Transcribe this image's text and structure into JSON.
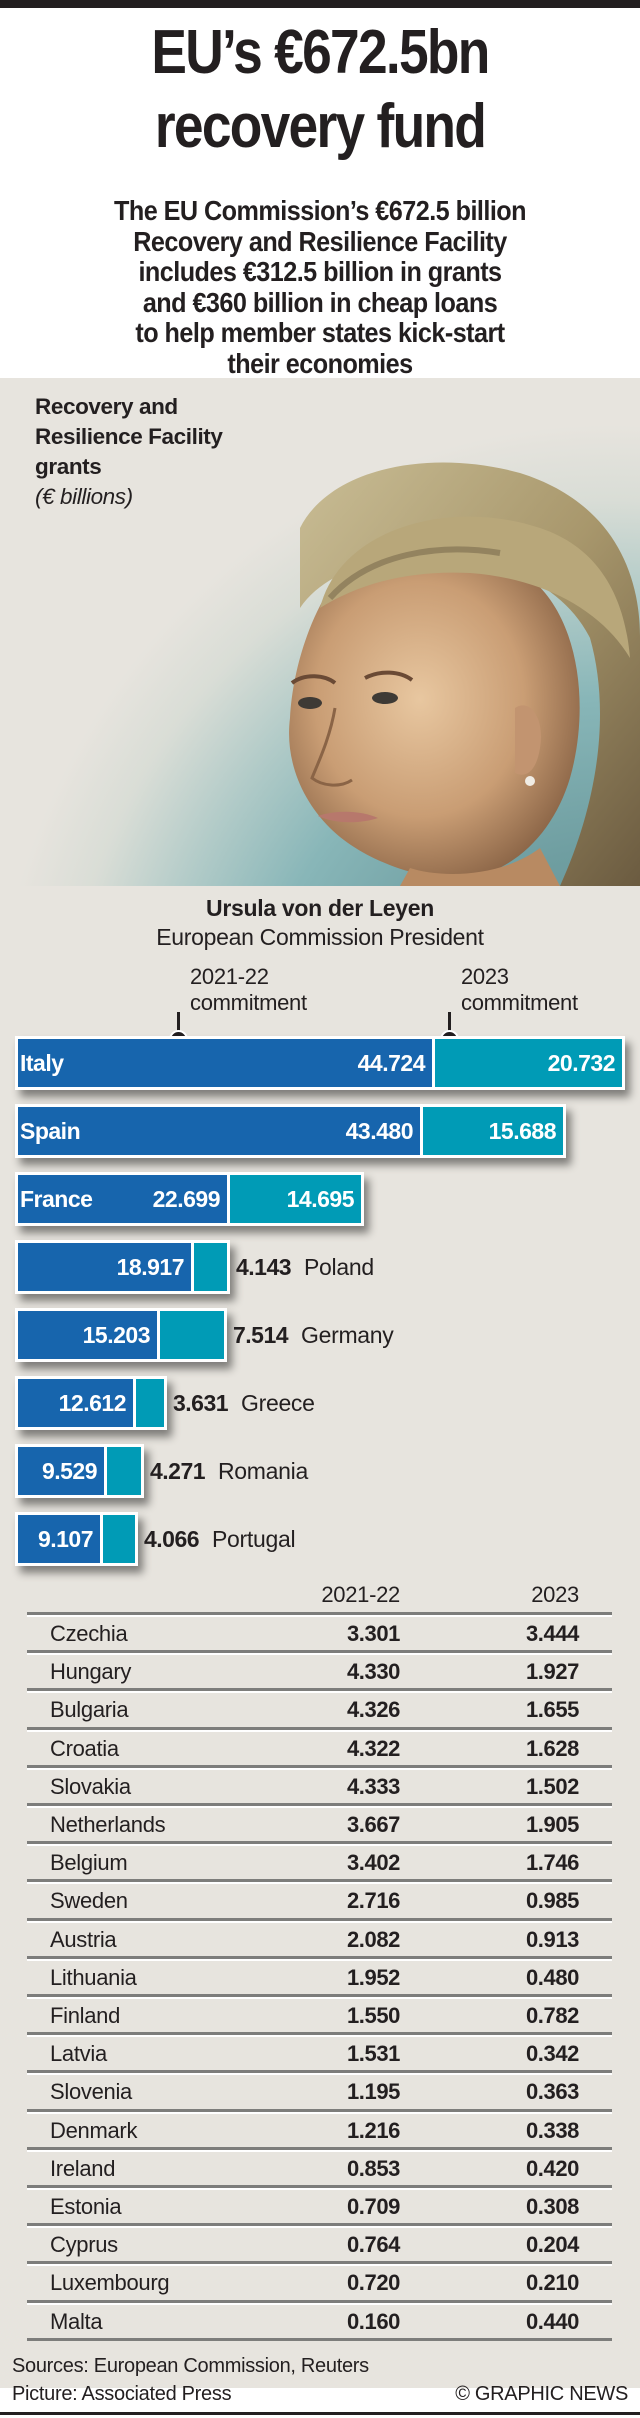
{
  "header": {
    "title_line1": "EU’s €672.5bn",
    "title_line2": "recovery fund",
    "subtitle_lines": [
      "The EU Commission’s €672.5 billion",
      "Recovery and Resilience Facility",
      "includes €312.5 billion in grants",
      "and €360 billion in cheap loans",
      "to help member states kick-start",
      "their economies"
    ]
  },
  "photo": {
    "subject": "portrait-photo",
    "caption_name": "Ursula von der Leyen",
    "caption_role": "European Commission President"
  },
  "colors": {
    "commitment_2021_22": "#1765ad",
    "commitment_2023": "#009bb6",
    "panel_background": "#e7e4de",
    "text": "#231f20"
  },
  "chart_data": {
    "type": "bar",
    "orientation": "horizontal-stacked",
    "title_lines": [
      "Recovery and",
      "Resilience Facility",
      "grants"
    ],
    "units": "(€ billions)",
    "legend": [
      {
        "line1": "2021-22",
        "line2": "commitment"
      },
      {
        "line1": "2023",
        "line2": "commitment"
      }
    ],
    "categories": [
      "Italy",
      "Spain",
      "France",
      "Poland",
      "Germany",
      "Greece",
      "Romania",
      "Portugal"
    ],
    "series": [
      {
        "name": "2021-22 commitment",
        "values": [
          44.724,
          43.48,
          22.699,
          18.917,
          15.203,
          12.612,
          9.529,
          9.107
        ],
        "labels": [
          "44.724",
          "43.480",
          "22.699",
          "18.917",
          "15.203",
          "12.612",
          "9.529",
          "9.107"
        ]
      },
      {
        "name": "2023 commitment",
        "values": [
          20.732,
          15.688,
          14.695,
          4.143,
          7.514,
          3.631,
          4.271,
          4.066
        ],
        "labels": [
          "20.732",
          "15.688",
          "14.695",
          "4.143",
          "7.514",
          "3.631",
          "4.271",
          "4.066"
        ]
      }
    ],
    "xlim": [
      0,
      65.456
    ]
  },
  "table": {
    "headers": [
      "",
      "2021-22",
      "2023"
    ],
    "rows": [
      {
        "country": "Czechia",
        "a": "3.301",
        "b": "3.444"
      },
      {
        "country": "Hungary",
        "a": "4.330",
        "b": "1.927"
      },
      {
        "country": "Bulgaria",
        "a": "4.326",
        "b": "1.655"
      },
      {
        "country": "Croatia",
        "a": "4.322",
        "b": "1.628"
      },
      {
        "country": "Slovakia",
        "a": "4.333",
        "b": "1.502"
      },
      {
        "country": "Netherlands",
        "a": "3.667",
        "b": "1.905"
      },
      {
        "country": "Belgium",
        "a": "3.402",
        "b": "1.746"
      },
      {
        "country": "Sweden",
        "a": "2.716",
        "b": "0.985"
      },
      {
        "country": "Austria",
        "a": "2.082",
        "b": "0.913"
      },
      {
        "country": "Lithuania",
        "a": "1.952",
        "b": "0.480"
      },
      {
        "country": "Finland",
        "a": "1.550",
        "b": "0.782"
      },
      {
        "country": "Latvia",
        "a": "1.531",
        "b": "0.342"
      },
      {
        "country": "Slovenia",
        "a": "1.195",
        "b": "0.363"
      },
      {
        "country": "Denmark",
        "a": "1.216",
        "b": "0.338"
      },
      {
        "country": "Ireland",
        "a": "0.853",
        "b": "0.420"
      },
      {
        "country": "Estonia",
        "a": "0.709",
        "b": "0.308"
      },
      {
        "country": "Cyprus",
        "a": "0.764",
        "b": "0.204"
      },
      {
        "country": "Luxembourg",
        "a": "0.720",
        "b": "0.210"
      },
      {
        "country": "Malta",
        "a": "0.160",
        "b": "0.440"
      }
    ]
  },
  "footer": {
    "sources": "Sources: European Commission, Reuters",
    "picture": "Picture: Associated Press",
    "credit": "© GRAPHIC NEWS"
  }
}
